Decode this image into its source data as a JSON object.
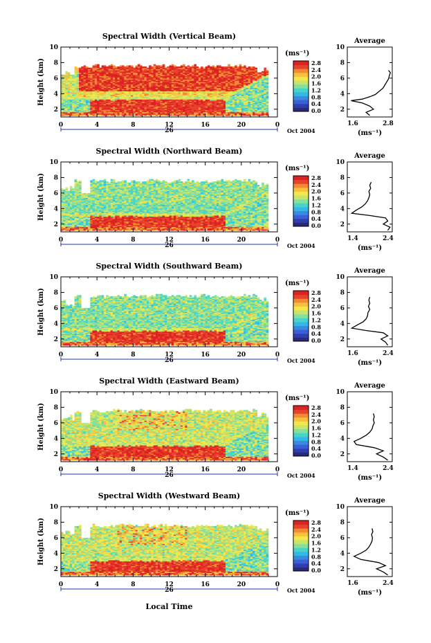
{
  "figure": {
    "date_label": "Oct 2004",
    "xlabel": "Local Time",
    "day_label": "26"
  },
  "colormap": [
    "#2a2a7a",
    "#2f3fb0",
    "#3b5fd8",
    "#3b8ae0",
    "#35b7e8",
    "#49d4c8",
    "#86df9a",
    "#c8e46a",
    "#f2e84c",
    "#f7c13e",
    "#f28a33",
    "#e8422e",
    "#dd2222"
  ],
  "chart_data": [
    {
      "type": "heatmap",
      "title": "Spectral Width (Vertical Beam)",
      "ylabel": "Height (km)",
      "xlim": [
        0,
        24
      ],
      "ylim": [
        1,
        10
      ],
      "x_ticks": [
        "0",
        "4",
        "8",
        "12",
        "16",
        "20",
        "0"
      ],
      "y_ticks": [
        "2",
        "4",
        "6",
        "8",
        "10"
      ],
      "colorbar": {
        "unit": "(ms⁻¹)",
        "ticks": [
          "0.0",
          "0.4",
          "0.8",
          "1.2",
          "1.6",
          "2.0",
          "2.4",
          "2.8"
        ],
        "range": [
          0,
          2.8
        ]
      },
      "average": {
        "title": "Average",
        "xlabel": "(ms⁻¹)",
        "x_ticks": [
          "1.6",
          "2.8"
        ],
        "xlim": [
          1.6,
          2.8
        ],
        "y_ticks": [
          "2",
          "4",
          "6",
          "8",
          "10"
        ],
        "profile": [
          [
            2.2,
            1.2
          ],
          [
            2.1,
            1.6
          ],
          [
            2.3,
            2.0
          ],
          [
            2.2,
            2.4
          ],
          [
            2.0,
            2.8
          ],
          [
            1.7,
            3.1
          ],
          [
            2.0,
            3.3
          ],
          [
            2.2,
            3.6
          ],
          [
            2.35,
            3.9
          ],
          [
            2.45,
            4.3
          ],
          [
            2.55,
            4.7
          ],
          [
            2.6,
            5.1
          ],
          [
            2.65,
            5.5
          ],
          [
            2.7,
            5.9
          ],
          [
            2.72,
            6.3
          ],
          [
            2.75,
            6.7
          ],
          [
            2.7,
            7.0
          ]
        ]
      },
      "layers": {
        "top_km": 7.5,
        "interface_km": 3.2,
        "upper_mode": "hot"
      }
    },
    {
      "type": "heatmap",
      "title": "Spectral Width (Northward Beam)",
      "ylabel": "Height (km)",
      "xlim": [
        0,
        24
      ],
      "ylim": [
        1,
        10
      ],
      "x_ticks": [
        "0",
        "4",
        "8",
        "12",
        "16",
        "20",
        "0"
      ],
      "y_ticks": [
        "2",
        "4",
        "6",
        "8",
        "10"
      ],
      "colorbar": {
        "unit": "(ms⁻¹)",
        "ticks": [
          "0.0",
          "0.4",
          "0.8",
          "1.2",
          "1.6",
          "2.0",
          "2.4",
          "2.8"
        ],
        "range": [
          0,
          2.8
        ]
      },
      "average": {
        "title": "Average",
        "xlabel": "(ms⁻¹)",
        "x_ticks": [
          "1.4",
          "2.4"
        ],
        "xlim": [
          1.4,
          2.4
        ],
        "y_ticks": [
          "2",
          "4",
          "6",
          "8",
          "10"
        ],
        "profile": [
          [
            2.3,
            1.2
          ],
          [
            2.35,
            1.6
          ],
          [
            2.2,
            2.0
          ],
          [
            2.3,
            2.4
          ],
          [
            2.25,
            2.8
          ],
          [
            1.9,
            3.1
          ],
          [
            1.5,
            3.4
          ],
          [
            1.6,
            3.8
          ],
          [
            1.72,
            4.2
          ],
          [
            1.8,
            4.6
          ],
          [
            1.85,
            5.0
          ],
          [
            1.88,
            5.4
          ],
          [
            1.9,
            5.8
          ],
          [
            1.88,
            6.2
          ],
          [
            1.92,
            6.6
          ],
          [
            1.9,
            7.0
          ],
          [
            1.93,
            7.4
          ]
        ]
      },
      "layers": {
        "top_km": 7.5,
        "interface_km": 3.0,
        "upper_mode": "cool"
      }
    },
    {
      "type": "heatmap",
      "title": "Spectral Width (Southward Beam)",
      "ylabel": "Height (km)",
      "xlim": [
        0,
        24
      ],
      "ylim": [
        1,
        10
      ],
      "x_ticks": [
        "0",
        "4",
        "8",
        "12",
        "16",
        "20",
        "0"
      ],
      "y_ticks": [
        "2",
        "4",
        "6",
        "8",
        "10"
      ],
      "colorbar": {
        "unit": "(ms⁻¹)",
        "ticks": [
          "0.0",
          "0.4",
          "0.8",
          "1.2",
          "1.6",
          "2.0",
          "2.4",
          "2.8"
        ],
        "range": [
          0,
          2.8
        ]
      },
      "average": {
        "title": "Average",
        "xlabel": "(ms⁻¹)",
        "x_ticks": [
          "1.6",
          "2.4"
        ],
        "xlim": [
          1.4,
          2.4
        ],
        "y_ticks": [
          "2",
          "4",
          "6",
          "8",
          "10"
        ],
        "profile": [
          [
            2.3,
            1.2
          ],
          [
            2.25,
            1.6
          ],
          [
            2.15,
            2.0
          ],
          [
            2.3,
            2.4
          ],
          [
            2.2,
            2.8
          ],
          [
            1.8,
            3.1
          ],
          [
            1.5,
            3.4
          ],
          [
            1.62,
            3.8
          ],
          [
            1.75,
            4.2
          ],
          [
            1.82,
            4.6
          ],
          [
            1.85,
            5.0
          ],
          [
            1.86,
            5.4
          ],
          [
            1.9,
            5.8
          ],
          [
            1.87,
            6.2
          ],
          [
            1.9,
            6.6
          ],
          [
            1.88,
            7.0
          ],
          [
            1.9,
            7.4
          ]
        ]
      },
      "layers": {
        "top_km": 7.5,
        "interface_km": 3.0,
        "upper_mode": "cool"
      }
    },
    {
      "type": "heatmap",
      "title": "Spectral Width (Eastward Beam)",
      "ylabel": "Height (km)",
      "xlim": [
        0,
        24
      ],
      "ylim": [
        1,
        10
      ],
      "x_ticks": [
        "0",
        "4",
        "8",
        "12",
        "16",
        "20",
        "0"
      ],
      "y_ticks": [
        "2",
        "4",
        "6",
        "8",
        "10"
      ],
      "colorbar": {
        "unit": "(ms⁻¹)",
        "ticks": [
          "0.0",
          "0.4",
          "0.8",
          "1.2",
          "1.6",
          "2.0",
          "2.4",
          "2.8"
        ],
        "range": [
          0,
          2.8
        ]
      },
      "average": {
        "title": "Average",
        "xlabel": "(ms⁻¹)",
        "x_ticks": [
          "1.4",
          "2.4"
        ],
        "xlim": [
          1.4,
          2.4
        ],
        "y_ticks": [
          "2",
          "4",
          "6",
          "8",
          "10"
        ],
        "profile": [
          [
            2.3,
            1.2
          ],
          [
            2.2,
            1.6
          ],
          [
            2.05,
            2.0
          ],
          [
            2.2,
            2.4
          ],
          [
            2.0,
            2.8
          ],
          [
            1.6,
            3.2
          ],
          [
            1.55,
            3.6
          ],
          [
            1.7,
            4.0
          ],
          [
            1.82,
            4.4
          ],
          [
            1.9,
            4.8
          ],
          [
            1.95,
            5.2
          ],
          [
            1.97,
            5.6
          ],
          [
            2.0,
            6.0
          ],
          [
            1.98,
            6.4
          ],
          [
            2.0,
            6.8
          ],
          [
            1.98,
            7.2
          ]
        ]
      },
      "layers": {
        "top_km": 7.5,
        "interface_km": 3.0,
        "upper_mode": "warm"
      }
    },
    {
      "type": "heatmap",
      "title": "Spectral Width (Westward Beam)",
      "ylabel": "Height (km)",
      "xlim": [
        0,
        24
      ],
      "ylim": [
        1,
        10
      ],
      "x_ticks": [
        "0",
        "4",
        "8",
        "12",
        "16",
        "20",
        "0"
      ],
      "y_ticks": [
        "2",
        "4",
        "6",
        "8",
        "10"
      ],
      "colorbar": {
        "unit": "(ms⁻¹)",
        "ticks": [
          "0.0",
          "0.4",
          "0.8",
          "1.2",
          "1.6",
          "2.0",
          "2.4",
          "2.8"
        ],
        "range": [
          0,
          2.8
        ]
      },
      "average": {
        "title": "Average",
        "xlabel": "(ms⁻¹)",
        "x_ticks": [
          "1.6",
          "2.4"
        ],
        "xlim": [
          1.4,
          2.4
        ],
        "y_ticks": [
          "2",
          "4",
          "6",
          "8",
          "10"
        ],
        "profile": [
          [
            2.3,
            1.2
          ],
          [
            2.2,
            1.6
          ],
          [
            2.05,
            2.0
          ],
          [
            2.25,
            2.4
          ],
          [
            2.1,
            2.8
          ],
          [
            1.7,
            3.2
          ],
          [
            1.55,
            3.6
          ],
          [
            1.7,
            4.0
          ],
          [
            1.82,
            4.4
          ],
          [
            1.88,
            4.8
          ],
          [
            1.92,
            5.2
          ],
          [
            1.95,
            5.6
          ],
          [
            1.96,
            6.0
          ],
          [
            1.94,
            6.4
          ],
          [
            1.97,
            6.8
          ],
          [
            1.95,
            7.2
          ]
        ]
      },
      "layers": {
        "top_km": 7.5,
        "interface_km": 3.0,
        "upper_mode": "warm"
      }
    }
  ]
}
